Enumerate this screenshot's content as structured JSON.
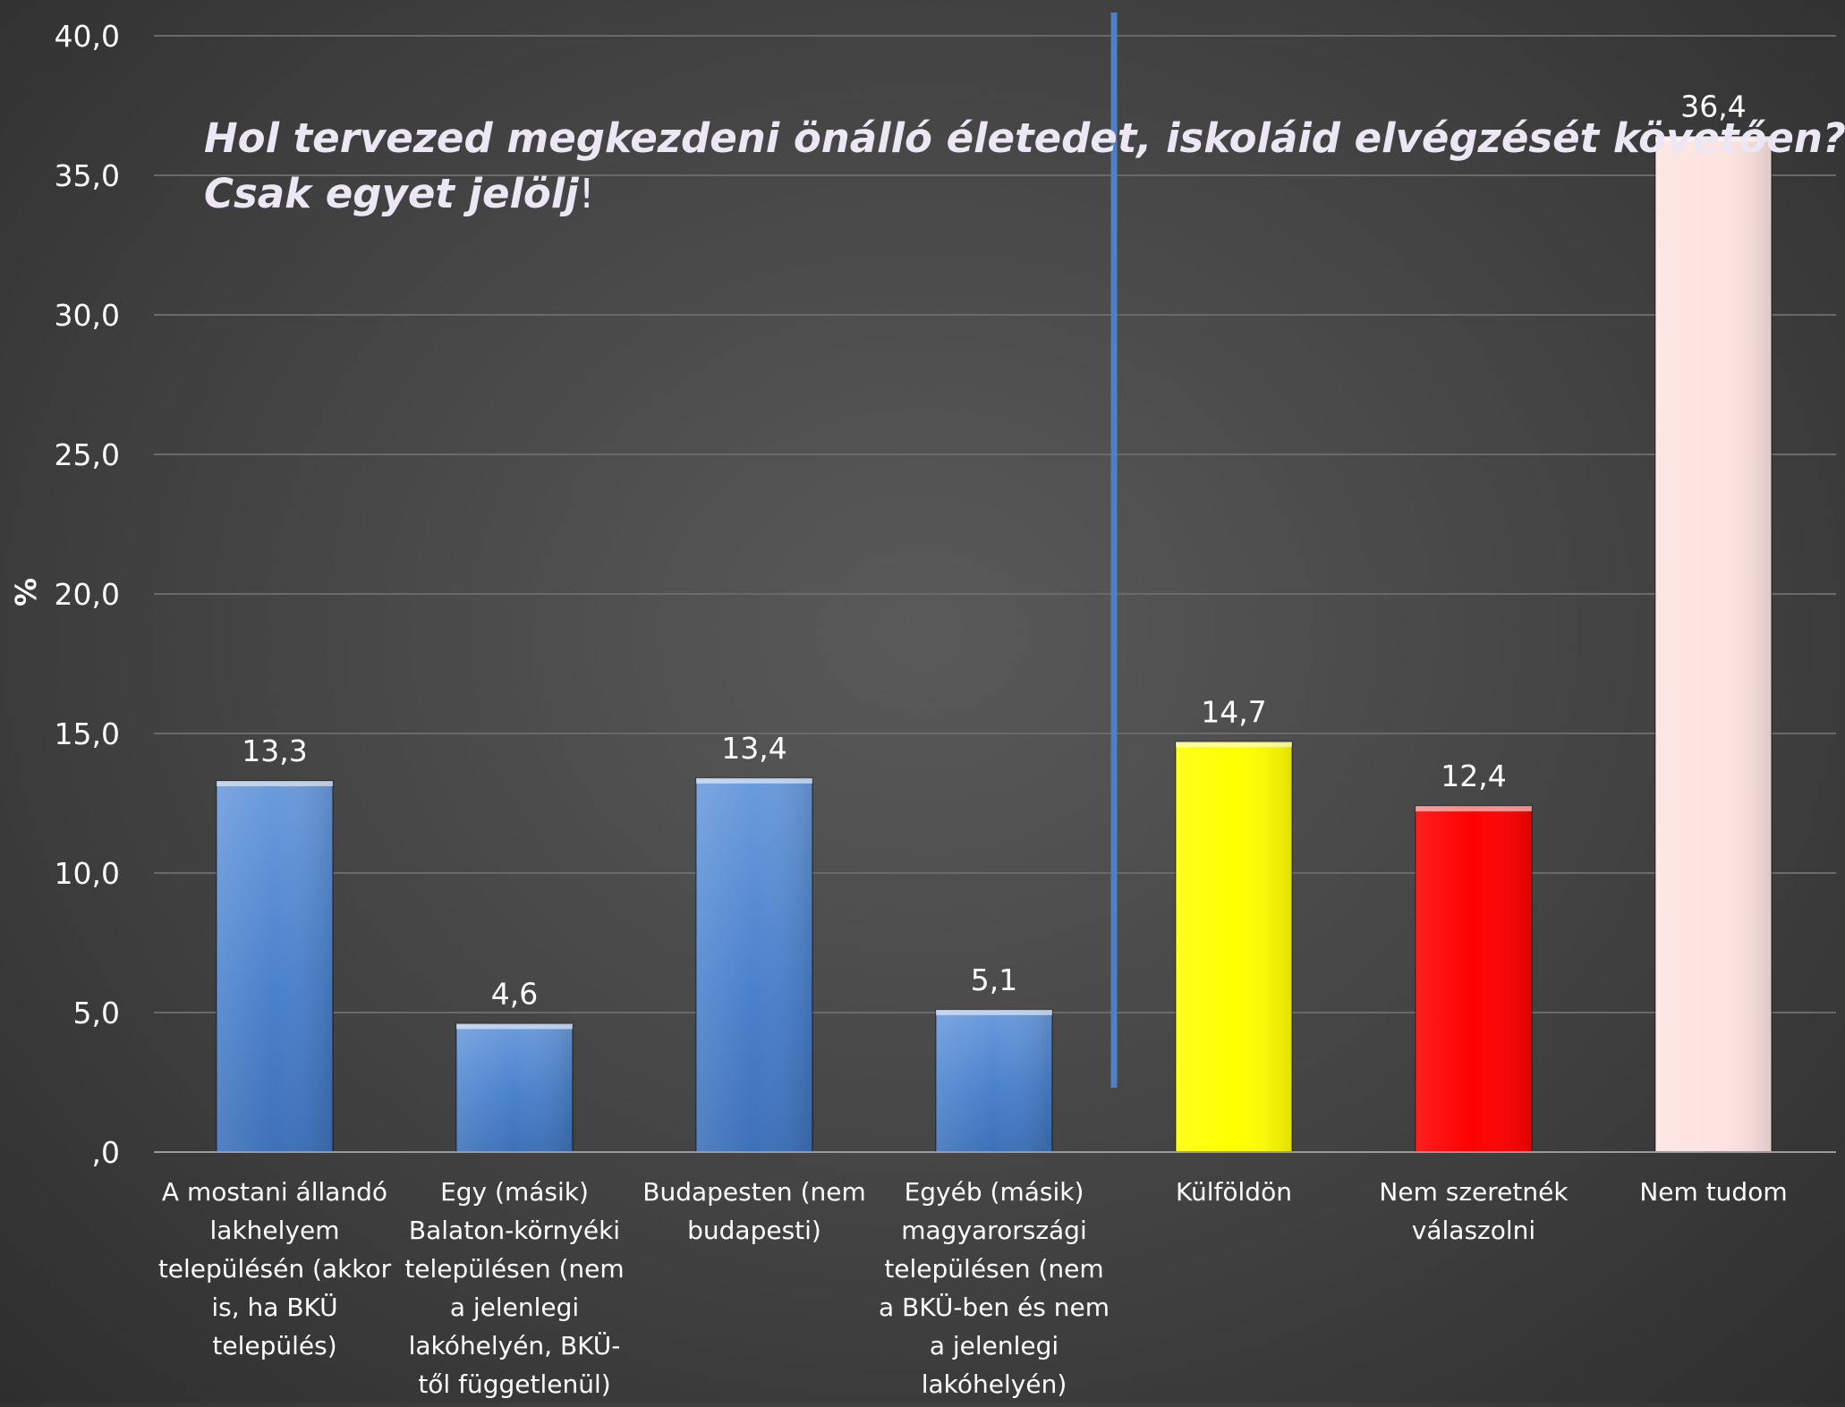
{
  "chart_data": {
    "type": "bar",
    "title": {
      "line1": "Hol tervezed megkezdeni önálló életedet, iskoláid elvégzését követően?",
      "line2": "Csak egyet jelölj",
      "line2_suffix": "!"
    },
    "ylabel": "%",
    "ylim": [
      0,
      40
    ],
    "yticks": [
      {
        "value": 0,
        "label": ",0"
      },
      {
        "value": 5,
        "label": "5,0"
      },
      {
        "value": 10,
        "label": "10,0"
      },
      {
        "value": 15,
        "label": "15,0"
      },
      {
        "value": 20,
        "label": "20,0"
      },
      {
        "value": 25,
        "label": "25,0"
      },
      {
        "value": 30,
        "label": "30,0"
      },
      {
        "value": 35,
        "label": "35,0"
      },
      {
        "value": 40,
        "label": "40,0"
      }
    ],
    "grid": true,
    "divider_after_category_index": 3,
    "categories": [
      {
        "label_lines": [
          "A mostani állandó",
          "lakhelyem",
          "településén (akkor",
          "is, ha BKÜ",
          "település)"
        ],
        "value": 13.3,
        "value_label": "13,3",
        "color": "#5b8fd6"
      },
      {
        "label_lines": [
          "Egy (másik)",
          "Balaton-környéki",
          "településen (nem",
          "a jelenlegi",
          "lakóhelyén, BKÜ-",
          "től függetlenül)"
        ],
        "value": 4.6,
        "value_label": "4,6",
        "color": "#5b8fd6"
      },
      {
        "label_lines": [
          "Budapesten (nem",
          "budapesti)"
        ],
        "value": 13.4,
        "value_label": "13,4",
        "color": "#5b8fd6"
      },
      {
        "label_lines": [
          "Egyéb (másik)",
          "magyarországi",
          "településen (nem",
          "a BKÜ-ben és nem",
          "a jelenlegi",
          "lakóhelyén)"
        ],
        "value": 5.1,
        "value_label": "5,1",
        "color": "#5b8fd6"
      },
      {
        "label_lines": [
          "Külföldön"
        ],
        "value": 14.7,
        "value_label": "14,7",
        "color": "#ffff00"
      },
      {
        "label_lines": [
          "Nem szeretnék",
          "válaszolni"
        ],
        "value": 12.4,
        "value_label": "12,4",
        "color": "#ff0000"
      },
      {
        "label_lines": [
          "Nem tudom"
        ],
        "value": 36.4,
        "value_label": "36,4",
        "color": "#fde4e0"
      }
    ]
  }
}
